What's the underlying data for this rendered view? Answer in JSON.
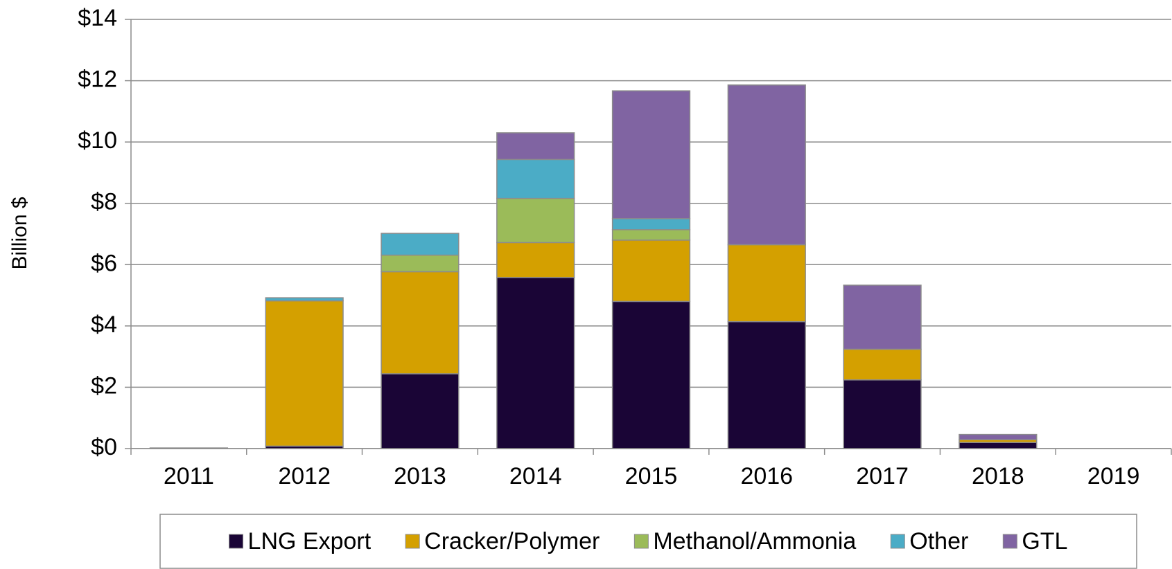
{
  "chart_data": {
    "type": "stacked-bar",
    "y_label": "Billion $",
    "categories": [
      "2011",
      "2012",
      "2013",
      "2014",
      "2015",
      "2016",
      "2017",
      "2018",
      "2019"
    ],
    "series": [
      {
        "name": "LNG Export",
        "color": "#1a0536",
        "values": [
          0.02,
          0.08,
          2.44,
          5.58,
          4.8,
          4.14,
          2.24,
          0.2,
          0
        ]
      },
      {
        "name": "Cracker/Polymer",
        "color": "#d4a000",
        "values": [
          0,
          4.74,
          3.33,
          1.14,
          2.0,
          2.51,
          1.0,
          0.09,
          0
        ]
      },
      {
        "name": "Methanol/Ammonia",
        "color": "#9bbb59",
        "values": [
          0,
          0,
          0.54,
          1.44,
          0.34,
          0,
          0,
          0,
          0
        ]
      },
      {
        "name": "Other",
        "color": "#4bacc6",
        "values": [
          0,
          0.1,
          0.71,
          1.27,
          0.36,
          0,
          0,
          0,
          0
        ]
      },
      {
        "name": "GTL",
        "color": "#8064a2",
        "values": [
          0,
          0,
          0,
          0.87,
          4.17,
          5.21,
          2.09,
          0.17,
          0
        ]
      }
    ],
    "ylim": [
      0,
      14
    ],
    "yticks": [
      {
        "value": 0,
        "label": "$0"
      },
      {
        "value": 2,
        "label": "$2"
      },
      {
        "value": 4,
        "label": "$4"
      },
      {
        "value": 6,
        "label": "$6"
      },
      {
        "value": 8,
        "label": "$8"
      },
      {
        "value": 10,
        "label": "$10"
      },
      {
        "value": 12,
        "label": "$12"
      },
      {
        "value": 14,
        "label": "$14"
      }
    ],
    "grid": true,
    "legend": "bottom"
  }
}
